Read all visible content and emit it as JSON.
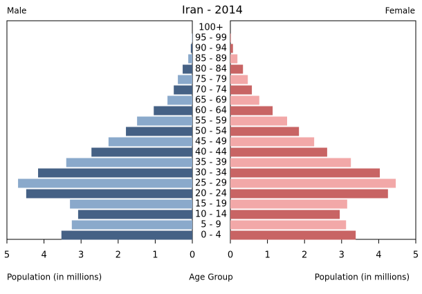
{
  "chart_data": {
    "type": "pyramid",
    "title": "Iran - 2014",
    "categories": [
      "0 - 4",
      "5 - 9",
      "10 - 14",
      "15 - 19",
      "20 - 24",
      "25 - 29",
      "30 - 34",
      "35 - 39",
      "40 - 44",
      "45 - 49",
      "50 - 54",
      "55 - 59",
      "60 - 64",
      "65 - 69",
      "70 - 74",
      "75 - 79",
      "80 - 84",
      "85 - 89",
      "90 - 94",
      "95 - 99",
      "100+"
    ],
    "category_label": "Age Group",
    "xlabel": "Population (in millions)",
    "xlim": [
      0,
      5
    ],
    "xticks": [
      0,
      1,
      2,
      3,
      4,
      5
    ],
    "series": [
      {
        "name": "Male",
        "colors": [
          "#456185",
          "#8aa9cb"
        ],
        "values": [
          3.53,
          3.25,
          3.08,
          3.3,
          4.48,
          4.7,
          4.16,
          3.4,
          2.72,
          2.26,
          1.79,
          1.49,
          1.04,
          0.67,
          0.5,
          0.39,
          0.26,
          0.11,
          0.04,
          0.01,
          0.0
        ]
      },
      {
        "name": "Female",
        "colors": [
          "#c86464",
          "#f2a8a8"
        ],
        "values": [
          3.38,
          3.12,
          2.95,
          3.15,
          4.25,
          4.46,
          4.03,
          3.25,
          2.61,
          2.26,
          1.85,
          1.53,
          1.14,
          0.78,
          0.58,
          0.47,
          0.34,
          0.19,
          0.07,
          0.02,
          0.0
        ]
      }
    ]
  }
}
